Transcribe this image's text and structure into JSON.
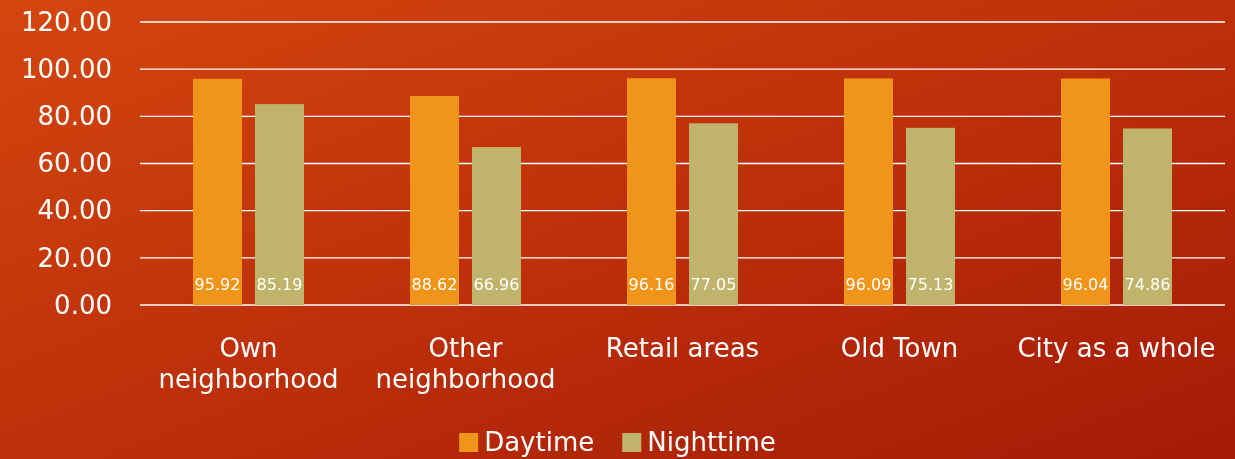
{
  "chart_data": {
    "type": "bar",
    "categories": [
      "Own neighborhood",
      "Other neighborhood",
      "Retail areas",
      "Old Town",
      "City as a whole"
    ],
    "series": [
      {
        "name": "Daytime",
        "color": "#f0951a",
        "values": [
          95.92,
          88.62,
          96.16,
          96.09,
          96.04
        ]
      },
      {
        "name": "Nighttime",
        "color": "#c0b46c",
        "values": [
          85.19,
          66.96,
          77.05,
          75.13,
          74.86
        ]
      }
    ],
    "ylim": [
      0,
      120
    ],
    "yticks": [
      {
        "value": 0,
        "label": "0.00"
      },
      {
        "value": 20,
        "label": "20.00"
      },
      {
        "value": 40,
        "label": "40.00"
      },
      {
        "value": 60,
        "label": "60.00"
      },
      {
        "value": 80,
        "label": "80.00"
      },
      {
        "value": 100,
        "label": "100.00"
      },
      {
        "value": 120,
        "label": "120.00"
      }
    ],
    "grid": "y",
    "legend": "bottom",
    "data_labels": true
  }
}
